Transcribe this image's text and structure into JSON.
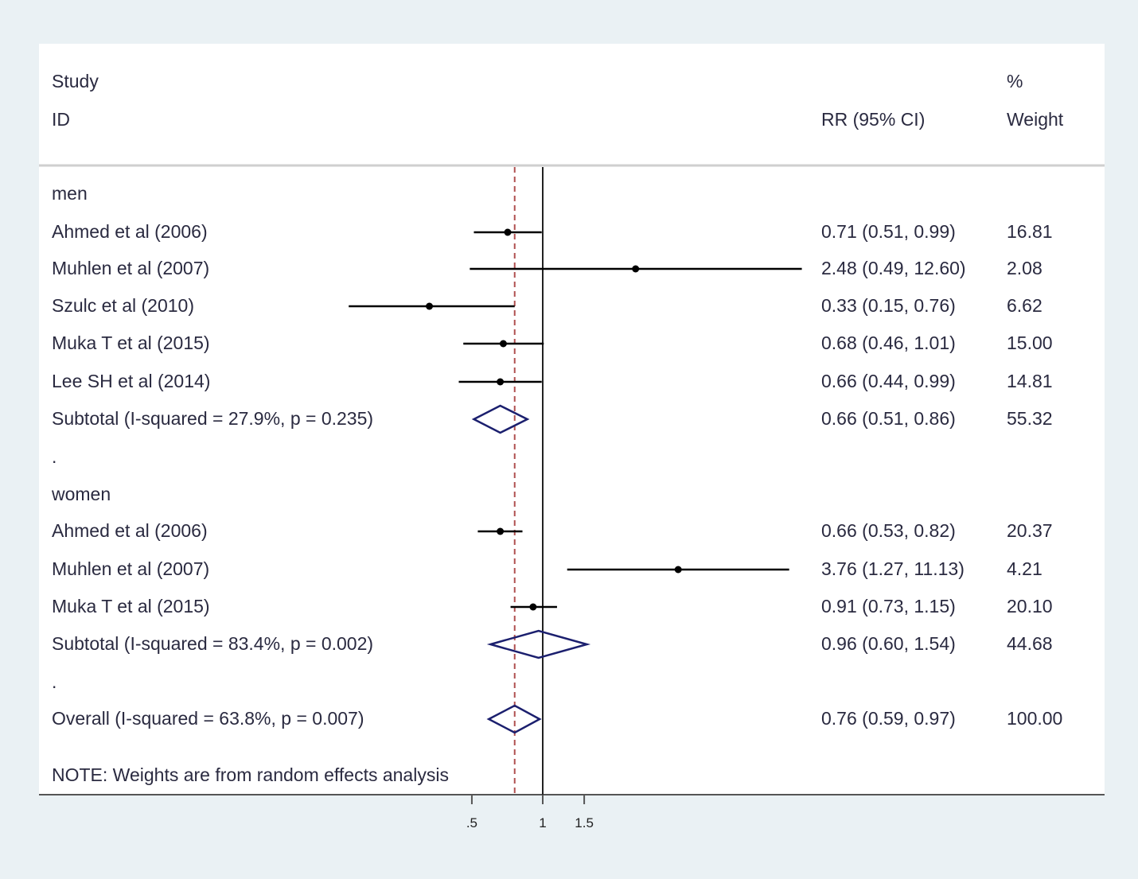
{
  "header": {
    "study_line1": "Study",
    "study_line2": "ID",
    "rr_label": "RR (95% CI)",
    "weight_line1": "%",
    "weight_line2": "Weight"
  },
  "chart_data": {
    "type": "forest",
    "x_scale": "log",
    "x_ticks": [
      0.5,
      1,
      1.5
    ],
    "x_tick_labels": [
      ".5",
      "1",
      "1.5"
    ],
    "null_line": 1,
    "overall_line": 0.76,
    "rows": [
      {
        "kind": "group",
        "label": "men"
      },
      {
        "kind": "study",
        "label": "Ahmed et al (2006)",
        "rr": 0.71,
        "lo": 0.51,
        "hi": 0.99,
        "ci_text": "0.71 (0.51, 0.99)",
        "weight": "16.81"
      },
      {
        "kind": "study",
        "label": "Muhlen et al (2007)",
        "rr": 2.48,
        "lo": 0.49,
        "hi": 12.6,
        "ci_text": "2.48 (0.49, 12.60)",
        "weight": "2.08",
        "clipped_right": true
      },
      {
        "kind": "study",
        "label": "Szulc et al (2010)",
        "rr": 0.33,
        "lo": 0.15,
        "hi": 0.76,
        "ci_text": "0.33 (0.15, 0.76)",
        "weight": "6.62"
      },
      {
        "kind": "study",
        "label": "Muka T et al (2015)",
        "rr": 0.68,
        "lo": 0.46,
        "hi": 1.01,
        "ci_text": "0.68 (0.46, 1.01)",
        "weight": "15.00"
      },
      {
        "kind": "study",
        "label": "Lee SH et al (2014)",
        "rr": 0.66,
        "lo": 0.44,
        "hi": 0.99,
        "ci_text": "0.66 (0.44, 0.99)",
        "weight": "14.81"
      },
      {
        "kind": "subtotal",
        "label": "Subtotal  (I-squared = 27.9%, p = 0.235)",
        "rr": 0.66,
        "lo": 0.51,
        "hi": 0.86,
        "ci_text": "0.66 (0.51, 0.86)",
        "weight": "55.32"
      },
      {
        "kind": "spacer",
        "label": "."
      },
      {
        "kind": "group",
        "label": "women"
      },
      {
        "kind": "study",
        "label": "Ahmed et al (2006)",
        "rr": 0.66,
        "lo": 0.53,
        "hi": 0.82,
        "ci_text": "0.66 (0.53, 0.82)",
        "weight": "20.37"
      },
      {
        "kind": "study",
        "label": "Muhlen et al (2007)",
        "rr": 3.76,
        "lo": 1.27,
        "hi": 11.13,
        "ci_text": "3.76 (1.27, 11.13)",
        "weight": "4.21",
        "clipped_right": true
      },
      {
        "kind": "study",
        "label": "Muka T et al (2015)",
        "rr": 0.91,
        "lo": 0.73,
        "hi": 1.15,
        "ci_text": "0.91 (0.73, 1.15)",
        "weight": "20.10"
      },
      {
        "kind": "subtotal",
        "label": "Subtotal  (I-squared = 83.4%, p = 0.002)",
        "rr": 0.96,
        "lo": 0.6,
        "hi": 1.54,
        "ci_text": "0.96 (0.60, 1.54)",
        "weight": "44.68"
      },
      {
        "kind": "spacer",
        "label": "."
      },
      {
        "kind": "overall",
        "label": "Overall  (I-squared = 63.8%, p = 0.007)",
        "rr": 0.76,
        "lo": 0.59,
        "hi": 0.97,
        "ci_text": "0.76 (0.59, 0.97)",
        "weight": "100.00"
      }
    ],
    "note": "NOTE: Weights are from random effects analysis"
  }
}
